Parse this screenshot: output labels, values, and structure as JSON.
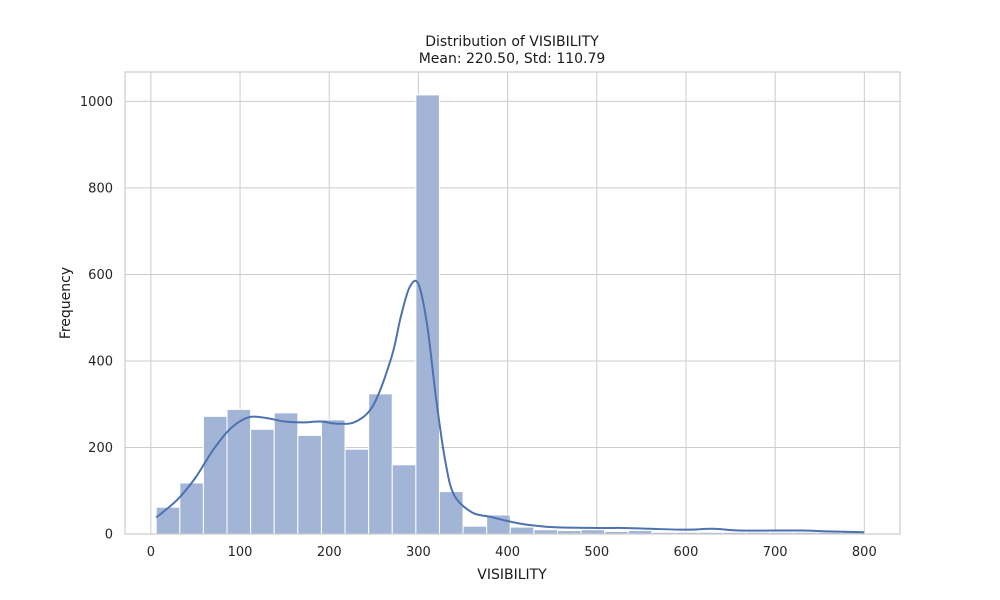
{
  "chart_data": {
    "type": "bar",
    "title": "Distribution of VISIBILITY",
    "subtitle": "Mean: 220.50, Std: 110.79",
    "xlabel": "VISIBILITY",
    "ylabel": "Frequency",
    "xlim": [
      -29,
      840
    ],
    "ylim": [
      0,
      1068
    ],
    "x_ticks": [
      0,
      100,
      200,
      300,
      400,
      500,
      600,
      700,
      800
    ],
    "y_ticks": [
      0,
      200,
      400,
      600,
      800,
      1000
    ],
    "grid": true,
    "bin_edges": [
      6,
      32.47,
      58.93,
      85.4,
      111.87,
      138.33,
      164.8,
      191.27,
      217.73,
      244.2,
      270.67,
      297.13,
      323.6,
      350.07,
      376.53,
      403,
      429.47,
      455.93,
      482.4,
      508.87,
      535.33,
      561.8,
      588.27,
      614.73,
      641.2,
      667.67,
      694.13,
      720.6,
      747.07,
      773.53,
      800
    ],
    "counts": [
      62,
      118,
      272,
      288,
      242,
      280,
      228,
      264,
      196,
      324,
      160,
      1015,
      98,
      18,
      44,
      16,
      10,
      8,
      10,
      6,
      8,
      4,
      4,
      4,
      4,
      4,
      4,
      4,
      4,
      4
    ],
    "kde_x": [
      6,
      30,
      50,
      70,
      90,
      110,
      130,
      150,
      170,
      190,
      210,
      230,
      250,
      270,
      280,
      290,
      300,
      310,
      320,
      330,
      340,
      360,
      380,
      400,
      420,
      450,
      500,
      530,
      560,
      600,
      630,
      660,
      700,
      730,
      760,
      800
    ],
    "kde_y": [
      38,
      80,
      130,
      195,
      245,
      270,
      268,
      260,
      258,
      260,
      255,
      260,
      300,
      410,
      500,
      570,
      578,
      480,
      310,
      170,
      90,
      50,
      40,
      30,
      22,
      16,
      14,
      14,
      12,
      10,
      12,
      8,
      8,
      8,
      6,
      4
    ],
    "colors": {
      "bar_fill": "#a3b5d6",
      "kde_line": "#4c72b0",
      "grid": "#cccccc"
    }
  }
}
